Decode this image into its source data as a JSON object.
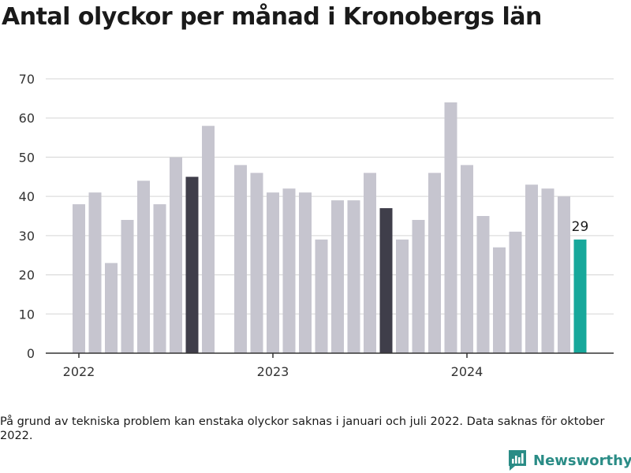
{
  "title": "Antal olyckor per månad i Kronobergs län",
  "footnote": "På grund av tekniska problem kan enstaka olyckor saknas i januari och juli 2022. Data saknas för oktober 2022.",
  "brand": {
    "name": "Newsworthy",
    "icon": "newsworthy-logo-icon"
  },
  "colors": {
    "default_bar": "#c6c5cf",
    "highlight_bar": "#3f3e4a",
    "latest_bar": "#17a89b",
    "grid": "#dddddd",
    "axis": "#333333"
  },
  "chart_data": {
    "type": "bar",
    "title": "Antal olyckor per månad i Kronobergs län",
    "xlabel": "",
    "ylabel": "",
    "ylim": [
      0,
      70
    ],
    "yticks": [
      0,
      10,
      20,
      30,
      40,
      50,
      60,
      70
    ],
    "xtick_labels": [
      "2022",
      "2023",
      "2024"
    ],
    "grid": true,
    "x": [
      "2022-01",
      "2022-02",
      "2022-03",
      "2022-04",
      "2022-05",
      "2022-06",
      "2022-07",
      "2022-08",
      "2022-09",
      "2022-10",
      "2022-11",
      "2022-12",
      "2023-01",
      "2023-02",
      "2023-03",
      "2023-04",
      "2023-05",
      "2023-06",
      "2023-07",
      "2023-08",
      "2023-09",
      "2023-10",
      "2023-11",
      "2023-12",
      "2024-01",
      "2024-02",
      "2024-03",
      "2024-04",
      "2024-05",
      "2024-06",
      "2024-07",
      "2024-08"
    ],
    "values": [
      38,
      41,
      23,
      34,
      44,
      38,
      50,
      45,
      58,
      null,
      48,
      46,
      41,
      42,
      41,
      29,
      39,
      39,
      46,
      37,
      29,
      34,
      46,
      64,
      48,
      35,
      27,
      31,
      43,
      42,
      40,
      29
    ],
    "highlight": [
      "2022-08",
      "2023-08"
    ],
    "latest": "2024-08",
    "annotations": [
      {
        "x": "2024-08",
        "text": "29"
      }
    ]
  }
}
